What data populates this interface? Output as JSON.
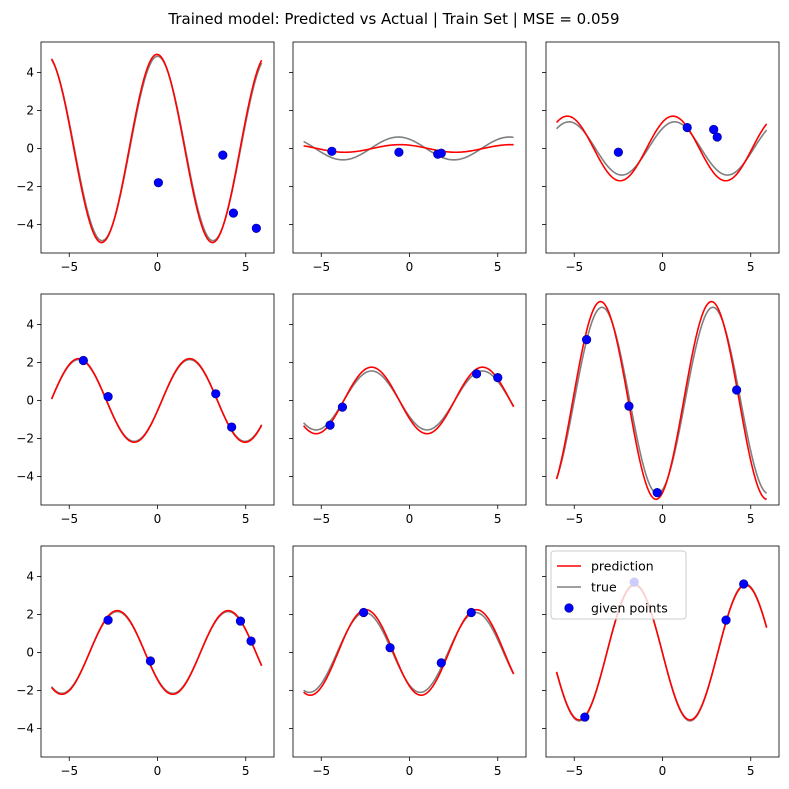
{
  "figure": {
    "title": "Trained model: Predicted vs Actual | Train Set | MSE = 0.059",
    "colors": {
      "prediction": "#ff0000",
      "true": "#808080",
      "points": "#0000ff",
      "points_edge": "#00008b"
    }
  },
  "chart_data": [
    {
      "type": "line",
      "xlim": [
        -6.6,
        6.6
      ],
      "ylim": [
        -5.5,
        5.6
      ],
      "x_ticks": [
        -5,
        0,
        5
      ],
      "y_ticks": [
        -4,
        -2,
        0,
        2,
        4
      ],
      "true": {
        "a": 4.85,
        "w": 1.0,
        "p": 1.57,
        "range": [
          -6,
          5.9
        ]
      },
      "pred": {
        "a": 4.95,
        "w": 1.0,
        "p": 1.6,
        "range": [
          -6,
          5.9
        ]
      },
      "points": [
        [
          0.05,
          -1.8
        ],
        [
          3.7,
          -0.35
        ],
        [
          4.3,
          -3.4
        ],
        [
          5.6,
          -4.2
        ]
      ]
    },
    {
      "type": "line",
      "xlim": [
        -6.6,
        6.6
      ],
      "ylim": [
        -5.5,
        5.6
      ],
      "x_ticks": [
        -5,
        0,
        5
      ],
      "y_ticks": [
        -4,
        -2,
        0,
        2,
        4
      ],
      "true": {
        "a": 0.6,
        "w": 1.0,
        "p": 2.2,
        "range": [
          -6,
          5.9
        ]
      },
      "pred": {
        "a": 0.2,
        "w": 1.0,
        "p": 2.1,
        "range": [
          -6,
          5.9
        ]
      },
      "points": [
        [
          -4.4,
          -0.15
        ],
        [
          -0.6,
          -0.2
        ],
        [
          1.6,
          -0.3
        ],
        [
          1.8,
          -0.25
        ]
      ]
    },
    {
      "type": "line",
      "xlim": [
        -6.6,
        6.6
      ],
      "ylim": [
        -5.5,
        5.6
      ],
      "x_ticks": [
        -5,
        0,
        5
      ],
      "y_ticks": [
        -4,
        -2,
        0,
        2,
        4
      ],
      "true": {
        "a": 1.4,
        "w": 1.05,
        "p": 0.85,
        "range": [
          -6,
          5.9
        ]
      },
      "pred": {
        "a": 1.7,
        "w": 1.05,
        "p": 0.95,
        "range": [
          -6,
          5.9
        ]
      },
      "points": [
        [
          -2.5,
          -0.2
        ],
        [
          1.4,
          1.1
        ],
        [
          2.9,
          1.0
        ],
        [
          3.1,
          0.6
        ]
      ]
    },
    {
      "type": "line",
      "xlim": [
        -6.6,
        6.6
      ],
      "ylim": [
        -5.5,
        5.6
      ],
      "x_ticks": [
        -5,
        0,
        5
      ],
      "y_ticks": [
        -4,
        -2,
        0,
        2,
        4
      ],
      "true": {
        "a": 2.15,
        "w": 1.0,
        "p": -0.25,
        "range": [
          -6,
          5.9
        ]
      },
      "pred": {
        "a": 2.2,
        "w": 1.0,
        "p": -0.25,
        "range": [
          -6,
          5.9
        ]
      },
      "points": [
        [
          -4.2,
          2.1
        ],
        [
          -2.8,
          0.2
        ],
        [
          3.3,
          0.35
        ],
        [
          4.2,
          -1.4
        ]
      ]
    },
    {
      "type": "line",
      "xlim": [
        -6.6,
        6.6
      ],
      "ylim": [
        -5.5,
        5.6
      ],
      "x_ticks": [
        -5,
        0,
        5
      ],
      "y_ticks": [
        -4,
        -2,
        0,
        2,
        4
      ],
      "true": {
        "a": 1.55,
        "w": 1.0,
        "p": 3.72,
        "range": [
          -6,
          5.9
        ]
      },
      "pred": {
        "a": 1.75,
        "w": 1.0,
        "p": 3.72,
        "range": [
          -6,
          5.9
        ]
      },
      "points": [
        [
          -4.5,
          -1.3
        ],
        [
          -3.8,
          -0.35
        ],
        [
          3.8,
          1.4
        ],
        [
          5.0,
          1.2
        ]
      ]
    },
    {
      "type": "line",
      "xlim": [
        -6.6,
        6.6
      ],
      "ylim": [
        -5.5,
        5.6
      ],
      "x_ticks": [
        -5,
        0,
        5
      ],
      "y_ticks": [
        -4,
        -2,
        0,
        2,
        4
      ],
      "true": {
        "a": 4.9,
        "w": 1.0,
        "p": 5.0,
        "range": [
          -6,
          5.9
        ]
      },
      "pred": {
        "a": 5.2,
        "w": 1.0,
        "p": 5.08,
        "range": [
          -6,
          5.9
        ]
      },
      "points": [
        [
          -4.3,
          3.2
        ],
        [
          -1.9,
          -0.3
        ],
        [
          -0.3,
          -4.85
        ],
        [
          4.2,
          0.55
        ]
      ]
    },
    {
      "type": "line",
      "xlim": [
        -6.6,
        6.6
      ],
      "ylim": [
        -5.5,
        5.6
      ],
      "x_ticks": [
        -5,
        0,
        5
      ],
      "y_ticks": [
        -4,
        -2,
        0,
        2,
        4
      ],
      "true": {
        "a": 2.15,
        "w": 1.0,
        "p": 3.85,
        "range": [
          -6,
          5.9
        ]
      },
      "pred": {
        "a": 2.2,
        "w": 1.0,
        "p": 3.85,
        "range": [
          -6,
          5.9
        ]
      },
      "points": [
        [
          -2.8,
          1.7
        ],
        [
          -0.4,
          -0.45
        ],
        [
          4.7,
          1.65
        ],
        [
          5.3,
          0.6
        ]
      ]
    },
    {
      "type": "line",
      "xlim": [
        -6.6,
        6.6
      ],
      "ylim": [
        -5.5,
        5.6
      ],
      "x_ticks": [
        -5,
        0,
        5
      ],
      "y_ticks": [
        -4,
        -2,
        0,
        2,
        4
      ],
      "true": {
        "a": 2.1,
        "w": 1.0,
        "p": 4.1,
        "range": [
          -6,
          5.9
        ]
      },
      "pred": {
        "a": 2.25,
        "w": 1.0,
        "p": 4.05,
        "range": [
          -6,
          5.9
        ]
      },
      "points": [
        [
          -2.6,
          2.1
        ],
        [
          -1.1,
          0.25
        ],
        [
          1.8,
          -0.55
        ],
        [
          3.5,
          2.1
        ]
      ]
    },
    {
      "type": "line",
      "xlim": [
        -6.6,
        6.6
      ],
      "ylim": [
        -5.5,
        5.6
      ],
      "x_ticks": [
        -5,
        0,
        5
      ],
      "y_ticks": [
        -4,
        -2,
        0,
        2,
        4
      ],
      "true": {
        "a": 3.6,
        "w": 1.0,
        "p": 3.15,
        "range": [
          -6,
          5.9
        ]
      },
      "pred": {
        "a": 3.55,
        "w": 1.0,
        "p": 3.15,
        "range": [
          -6,
          5.9
        ]
      },
      "points": [
        [
          -4.4,
          -3.4
        ],
        [
          -1.6,
          3.7
        ],
        [
          3.6,
          1.7
        ],
        [
          4.6,
          3.6
        ]
      ],
      "legend": {
        "loc": "upper-left",
        "entries": [
          "prediction",
          "true",
          "given points"
        ]
      }
    }
  ]
}
